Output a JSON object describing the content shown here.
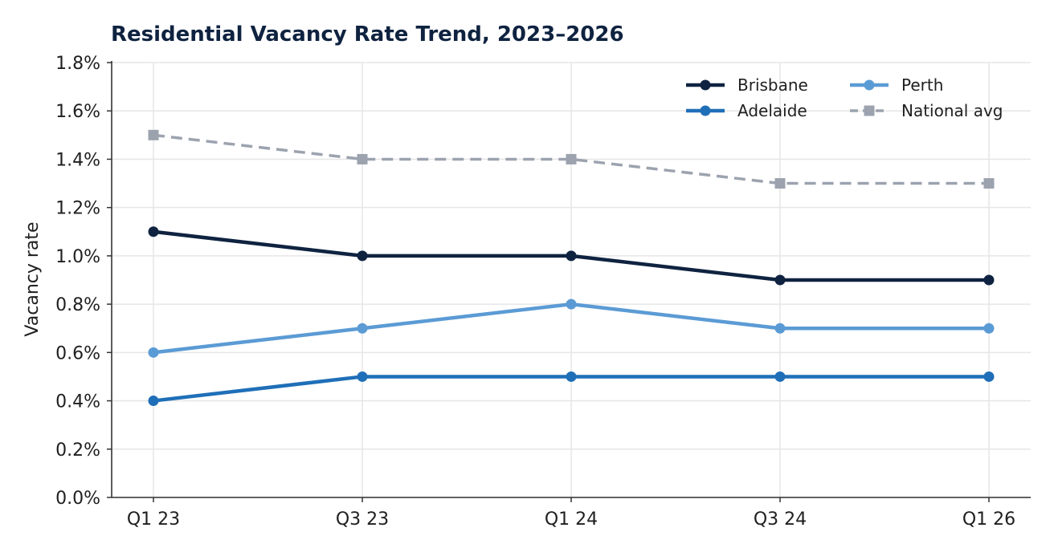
{
  "chart_data": {
    "type": "line",
    "title": "Residential Vacancy Rate Trend, 2023–2026",
    "xlabel": "",
    "ylabel": "Vacancy rate",
    "categories": [
      "Q1 23",
      "Q3 23",
      "Q1 24",
      "Q3 24",
      "Q1 26"
    ],
    "ylim": [
      0,
      1.8
    ],
    "yticks": [
      0.0,
      0.2,
      0.4,
      0.6,
      0.8,
      1.0,
      1.2,
      1.4,
      1.6,
      1.8
    ],
    "ytick_labels": [
      "0.0%",
      "0.2%",
      "0.4%",
      "0.6%",
      "0.8%",
      "1.0%",
      "1.2%",
      "1.4%",
      "1.6%",
      "1.8%"
    ],
    "grid": true,
    "legend_position": "top-right",
    "series": [
      {
        "name": "Brisbane",
        "values": [
          1.1,
          1.0,
          1.0,
          0.9,
          0.9
        ],
        "color": "#0f2340",
        "style": "solid",
        "marker": "circle"
      },
      {
        "name": "Adelaide",
        "values": [
          0.4,
          0.5,
          0.5,
          0.5,
          0.5
        ],
        "color": "#1f6fb8",
        "style": "solid",
        "marker": "circle"
      },
      {
        "name": "Perth",
        "values": [
          0.6,
          0.7,
          0.8,
          0.7,
          0.7
        ],
        "color": "#5b9bd5",
        "style": "solid",
        "marker": "circle"
      },
      {
        "name": "National avg",
        "values": [
          1.5,
          1.4,
          1.4,
          1.3,
          1.3
        ],
        "color": "#9ca3af",
        "style": "dashed",
        "marker": "square"
      }
    ]
  }
}
